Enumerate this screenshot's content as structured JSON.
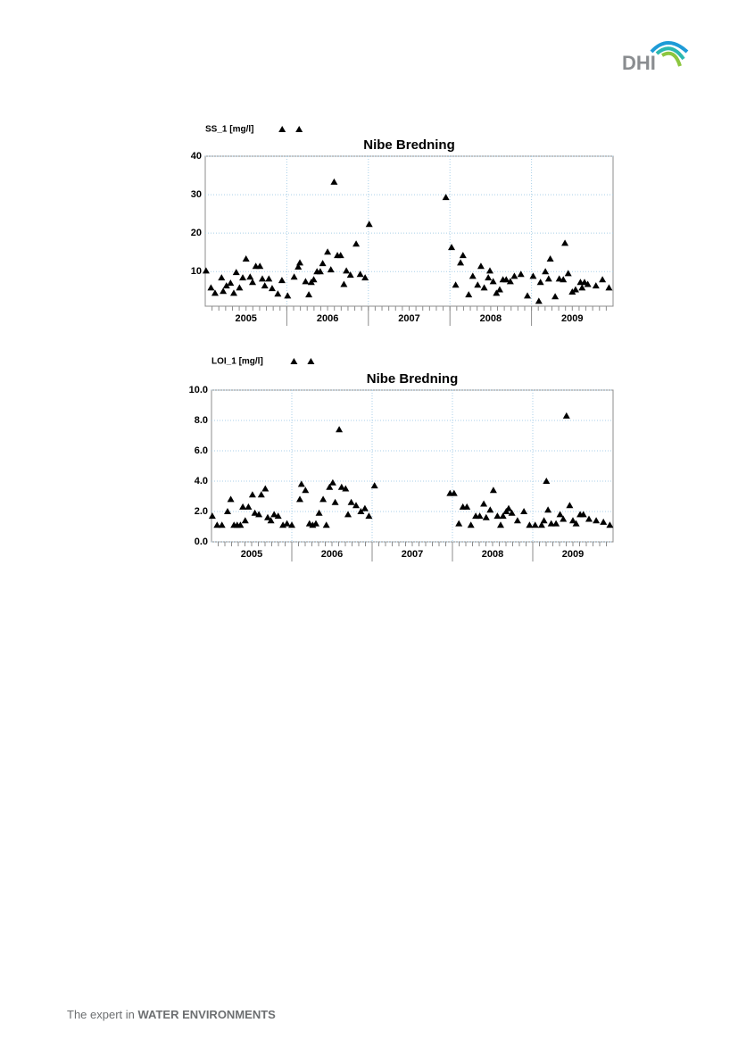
{
  "logo": "DHI",
  "footer": {
    "lead": "The expert in",
    "emphasis": "WATER ENVIRONMENTS"
  },
  "chart_data": [
    {
      "type": "scatter",
      "title": "Nibe Bredning",
      "series": [
        {
          "name": "SS_1 [mg/l]",
          "color": "#000000",
          "x": [
            2005.01,
            2005.07,
            2005.12,
            2005.2,
            2005.22,
            2005.26,
            2005.31,
            2005.35,
            2005.38,
            2005.42,
            2005.46,
            2005.5,
            2005.55,
            2005.58,
            2005.62,
            2005.67,
            2005.7,
            2005.73,
            2005.78,
            2005.82,
            2005.89,
            2005.94,
            2006.01,
            2006.09,
            2006.14,
            2006.16,
            2006.23,
            2006.27,
            2006.3,
            2006.33,
            2006.37,
            2006.41,
            2006.44,
            2006.5,
            2006.54,
            2006.58,
            2006.62,
            2006.66,
            2006.7,
            2006.73,
            2006.78,
            2006.85,
            2006.9,
            2006.96,
            2007.01,
            2007.95,
            2008.02,
            2008.07,
            2008.13,
            2008.16,
            2008.23,
            2008.28,
            2008.34,
            2008.38,
            2008.42,
            2008.47,
            2008.49,
            2008.53,
            2008.57,
            2008.61,
            2008.65,
            2008.69,
            2008.74,
            2008.79,
            2008.87,
            2008.95,
            2009.02,
            2009.09,
            2009.11,
            2009.17,
            2009.21,
            2009.23,
            2009.29,
            2009.34,
            2009.39,
            2009.41,
            2009.45,
            2009.5,
            2009.54,
            2009.6,
            2009.62,
            2009.65,
            2009.69,
            2009.79,
            2009.87,
            2009.95
          ],
          "values": [
            10.2,
            5.8,
            4.4,
            8.4,
            4.9,
            6.3,
            7.0,
            4.4,
            9.8,
            5.8,
            8.4,
            13.3,
            8.6,
            7.2,
            11.4,
            11.4,
            8.1,
            6.3,
            8.1,
            5.6,
            4.2,
            7.7,
            3.7,
            8.6,
            11.2,
            12.3,
            7.4,
            4.0,
            7.2,
            7.9,
            10.0,
            10.0,
            12.1,
            15.1,
            10.5,
            33.3,
            14.2,
            14.2,
            6.7,
            10.2,
            9.1,
            17.2,
            9.3,
            8.4,
            22.3,
            29.3,
            16.3,
            6.5,
            12.3,
            14.2,
            4.0,
            8.8,
            6.5,
            11.4,
            5.8,
            8.4,
            10.2,
            7.4,
            4.4,
            5.3,
            7.9,
            7.9,
            7.4,
            8.8,
            9.3,
            3.7,
            8.8,
            2.3,
            7.2,
            10.0,
            8.1,
            13.3,
            3.5,
            8.1,
            7.9,
            17.4,
            9.5,
            4.7,
            5.3,
            7.2,
            5.8,
            7.2,
            6.7,
            6.3,
            7.9,
            5.8
          ]
        }
      ],
      "xlim": [
        2005,
        2010
      ],
      "xticks": [
        {
          "value": 2005.5,
          "label": "2005"
        },
        {
          "value": 2006.5,
          "label": "2006"
        },
        {
          "value": 2007.5,
          "label": "2007"
        },
        {
          "value": 2008.5,
          "label": "2008"
        },
        {
          "value": 2009.5,
          "label": "2009"
        }
      ],
      "xgrid": [
        2006,
        2007,
        2008,
        2009
      ],
      "ylim": [
        1,
        40
      ],
      "yticks": [
        10,
        20,
        30,
        40
      ],
      "grid": true
    },
    {
      "type": "scatter",
      "title": "Nibe Bredning",
      "series": [
        {
          "name": "LOI_1 [mg/l]",
          "color": "#000000",
          "x": [
            2005.01,
            2005.07,
            2005.13,
            2005.2,
            2005.24,
            2005.28,
            2005.32,
            2005.36,
            2005.39,
            2005.42,
            2005.46,
            2005.51,
            2005.54,
            2005.59,
            2005.62,
            2005.67,
            2005.7,
            2005.74,
            2005.78,
            2005.83,
            2005.89,
            2005.94,
            2006.0,
            2006.1,
            2006.12,
            2006.17,
            2006.22,
            2006.26,
            2006.3,
            2006.34,
            2006.39,
            2006.43,
            2006.47,
            2006.51,
            2006.54,
            2006.59,
            2006.62,
            2006.67,
            2006.7,
            2006.74,
            2006.8,
            2006.86,
            2006.91,
            2006.96,
            2007.03,
            2007.97,
            2008.02,
            2008.08,
            2008.13,
            2008.18,
            2008.23,
            2008.29,
            2008.34,
            2008.39,
            2008.42,
            2008.47,
            2008.51,
            2008.56,
            2008.6,
            2008.63,
            2008.67,
            2008.7,
            2008.74,
            2008.81,
            2008.89,
            2008.96,
            2009.03,
            2009.11,
            2009.14,
            2009.17,
            2009.19,
            2009.23,
            2009.29,
            2009.34,
            2009.38,
            2009.42,
            2009.46,
            2009.5,
            2009.54,
            2009.59,
            2009.63,
            2009.7,
            2009.79,
            2009.88,
            2009.96
          ],
          "values": [
            1.7,
            1.1,
            1.1,
            2.0,
            2.8,
            1.1,
            1.1,
            1.1,
            2.3,
            1.4,
            2.3,
            3.1,
            1.9,
            1.8,
            3.1,
            3.5,
            1.6,
            1.4,
            1.8,
            1.7,
            1.1,
            1.2,
            1.1,
            2.8,
            3.8,
            3.4,
            1.2,
            1.1,
            1.2,
            1.9,
            2.8,
            1.1,
            3.6,
            3.9,
            2.6,
            7.4,
            3.6,
            3.5,
            1.8,
            2.6,
            2.4,
            2.0,
            2.2,
            1.7,
            3.7,
            3.2,
            3.2,
            1.2,
            2.3,
            2.3,
            1.1,
            1.7,
            1.7,
            2.5,
            1.6,
            2.1,
            3.4,
            1.7,
            1.1,
            1.7,
            2.0,
            2.2,
            1.9,
            1.4,
            2.0,
            1.1,
            1.1,
            1.1,
            1.4,
            4.0,
            2.1,
            1.2,
            1.2,
            1.8,
            1.5,
            8.3,
            2.4,
            1.4,
            1.2,
            1.8,
            1.8,
            1.5,
            1.4,
            1.3,
            1.1
          ]
        }
      ],
      "xlim": [
        2005,
        2010
      ],
      "xticks": [
        {
          "value": 2005.5,
          "label": "2005"
        },
        {
          "value": 2006.5,
          "label": "2006"
        },
        {
          "value": 2007.5,
          "label": "2007"
        },
        {
          "value": 2008.5,
          "label": "2008"
        },
        {
          "value": 2009.5,
          "label": "2009"
        }
      ],
      "xgrid": [
        2006,
        2007,
        2008,
        2009
      ],
      "ylim": [
        0,
        10
      ],
      "yticks": [
        {
          "value": 0,
          "label": "0.0"
        },
        {
          "value": 2,
          "label": "2.0"
        },
        {
          "value": 4,
          "label": "4.0"
        },
        {
          "value": 6,
          "label": "6.0"
        },
        {
          "value": 8,
          "label": "8.0"
        },
        {
          "value": 10,
          "label": "10.0"
        }
      ],
      "grid": true
    }
  ]
}
